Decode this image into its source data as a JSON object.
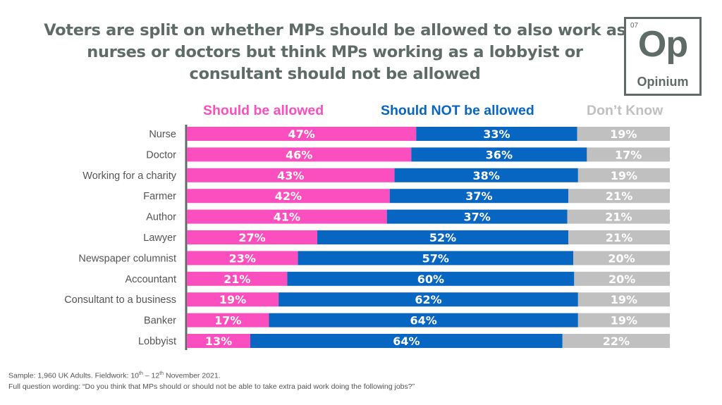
{
  "title": "Voters are split on whether MPs should be allowed to also work as nurses or doctors but think MPs working as a lobbyist or consultant should not be allowed",
  "logo": {
    "number": "07",
    "symbol": "Op",
    "name": "Opinium"
  },
  "colors": {
    "allowed": "#fb4fbf",
    "not_allowed": "#0866c3",
    "dont_know": "#c0c0c0",
    "axis": "#5f6b67",
    "label": "#555555"
  },
  "footer": {
    "sample_prefix": "Sample: 1,960 UK Adults. Fieldwork: 10",
    "sup1": "th",
    "mid": " – 12",
    "sup2": "th",
    "sample_suffix": " November 2021.",
    "question": "Full question wording: “Do you think that MPs should or should not be able to take extra paid work doing the following jobs?”"
  },
  "chart_data": {
    "type": "bar",
    "orientation": "horizontal",
    "stacked": "100%",
    "title": "Voters are split on whether MPs should be allowed to also work as nurses or doctors but think MPs working as a lobbyist or consultant should not be allowed",
    "legend_position": "top",
    "categories": [
      "Nurse",
      "Doctor",
      "Working for a charity",
      "Farmer",
      "Author",
      "Lawyer",
      "Newspaper columnist",
      "Accountant",
      "Consultant to a business",
      "Banker",
      "Lobbyist"
    ],
    "series": [
      {
        "name": "Should be allowed",
        "color": "#fb4fbf",
        "values": [
          47,
          46,
          43,
          42,
          41,
          27,
          23,
          21,
          19,
          17,
          13
        ]
      },
      {
        "name": "Should NOT be allowed",
        "color": "#0866c3",
        "values": [
          33,
          36,
          38,
          37,
          37,
          52,
          57,
          60,
          62,
          64,
          64
        ]
      },
      {
        "name": "Don’t Know",
        "color": "#c0c0c0",
        "values": [
          19,
          17,
          19,
          21,
          21,
          21,
          20,
          20,
          19,
          19,
          22
        ]
      }
    ],
    "value_suffix": "%",
    "xlabel": "",
    "ylabel": ""
  }
}
